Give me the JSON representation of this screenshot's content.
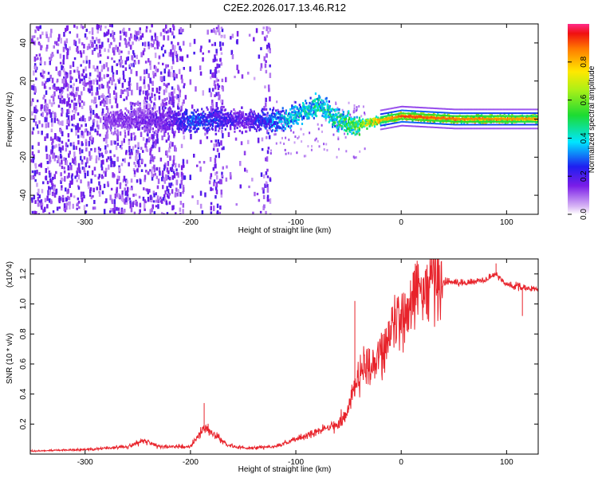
{
  "title": "C2E2.2026.017.13.46.R12",
  "chart_data": [
    {
      "type": "heatmap",
      "name": "spectrogram",
      "xlabel": "Height of straight line (km)",
      "ylabel": "Frequency (Hz)",
      "xlim": [
        -352,
        130
      ],
      "ylim": [
        -50,
        50
      ],
      "xticks": [
        -300,
        -200,
        -100,
        0,
        100
      ],
      "xtick_labels": [
        "-300",
        "-200",
        "-100",
        "0",
        "100"
      ],
      "yticks": [
        -40,
        -20,
        0,
        20,
        40
      ],
      "ytick_labels": [
        "-40",
        "-20",
        "0",
        "20",
        "40"
      ],
      "colorbar": {
        "label": "Normalized spectral amplitude",
        "range": [
          0,
          1
        ],
        "ticks": [
          0.0,
          0.2,
          0.4,
          0.6,
          0.8
        ],
        "tick_labels": [
          "0.0",
          "0.2",
          "0.4",
          "0.6",
          "0.8"
        ]
      },
      "signal_track": [
        {
          "x": -280,
          "freq": 0,
          "amp": 0.15
        },
        {
          "x": -220,
          "freq": 0,
          "amp": 0.2
        },
        {
          "x": -200,
          "freq": 0,
          "amp": 0.35
        },
        {
          "x": -150,
          "freq": 0,
          "amp": 0.2
        },
        {
          "x": -110,
          "freq": 0,
          "amp": 0.45
        },
        {
          "x": -80,
          "freq": 8,
          "amp": 0.5
        },
        {
          "x": -60,
          "freq": 0,
          "amp": 0.55
        },
        {
          "x": -45,
          "freq": -3,
          "amp": 0.6
        },
        {
          "x": -30,
          "freq": -1,
          "amp": 0.85
        },
        {
          "x": -10,
          "freq": 1,
          "amp": 0.9
        },
        {
          "x": 0,
          "freq": 2,
          "amp": 1.0
        },
        {
          "x": 50,
          "freq": 0.5,
          "amp": 0.95
        },
        {
          "x": 130,
          "freq": 0.5,
          "amp": 0.9
        }
      ],
      "noise_gaps": [
        [
          -207,
          -182
        ],
        [
          -170,
          -132
        ]
      ]
    },
    {
      "type": "line",
      "name": "snr",
      "xlabel": "Height of straight line (km)",
      "ylabel": "SNR (10 * v/v)",
      "y_scale_label": "(x10^4)",
      "xlim": [
        -352,
        130
      ],
      "ylim": [
        0,
        1.3
      ],
      "xticks": [
        -300,
        -200,
        -100,
        0,
        100
      ],
      "xtick_labels": [
        "-300",
        "-200",
        "-100",
        "0",
        "100"
      ],
      "yticks": [
        0.2,
        0.4,
        0.6,
        0.8,
        1.0,
        1.2
      ],
      "ytick_labels": [
        "0.2",
        "0.4",
        "0.6",
        "0.8",
        "1.0",
        "1.2"
      ],
      "color": "#e8232b",
      "series": [
        {
          "name": "SNR",
          "x": [
            -352,
            -300,
            -260,
            -245,
            -230,
            -200,
            -190,
            -185,
            -175,
            -165,
            -150,
            -120,
            -100,
            -80,
            -60,
            -50,
            -40,
            -30,
            -20,
            -10,
            0,
            10,
            20,
            30,
            40,
            60,
            80,
            90,
            100,
            110,
            120,
            130
          ],
          "y": [
            0.02,
            0.03,
            0.05,
            0.09,
            0.05,
            0.05,
            0.14,
            0.18,
            0.12,
            0.06,
            0.04,
            0.05,
            0.1,
            0.15,
            0.2,
            0.3,
            0.55,
            0.6,
            0.65,
            0.8,
            0.95,
            1.03,
            1.1,
            1.14,
            1.15,
            1.14,
            1.16,
            1.2,
            1.13,
            1.12,
            1.1,
            1.1
          ]
        }
      ],
      "spikes": [
        {
          "x": -187,
          "y": 0.34
        },
        {
          "x": -44,
          "y": 1.02
        },
        {
          "x": -30,
          "y": 0.7
        },
        {
          "x": -6,
          "y": 0.92
        },
        {
          "x": 90,
          "y": 1.27
        },
        {
          "x": 115,
          "y": 0.92
        }
      ]
    }
  ]
}
